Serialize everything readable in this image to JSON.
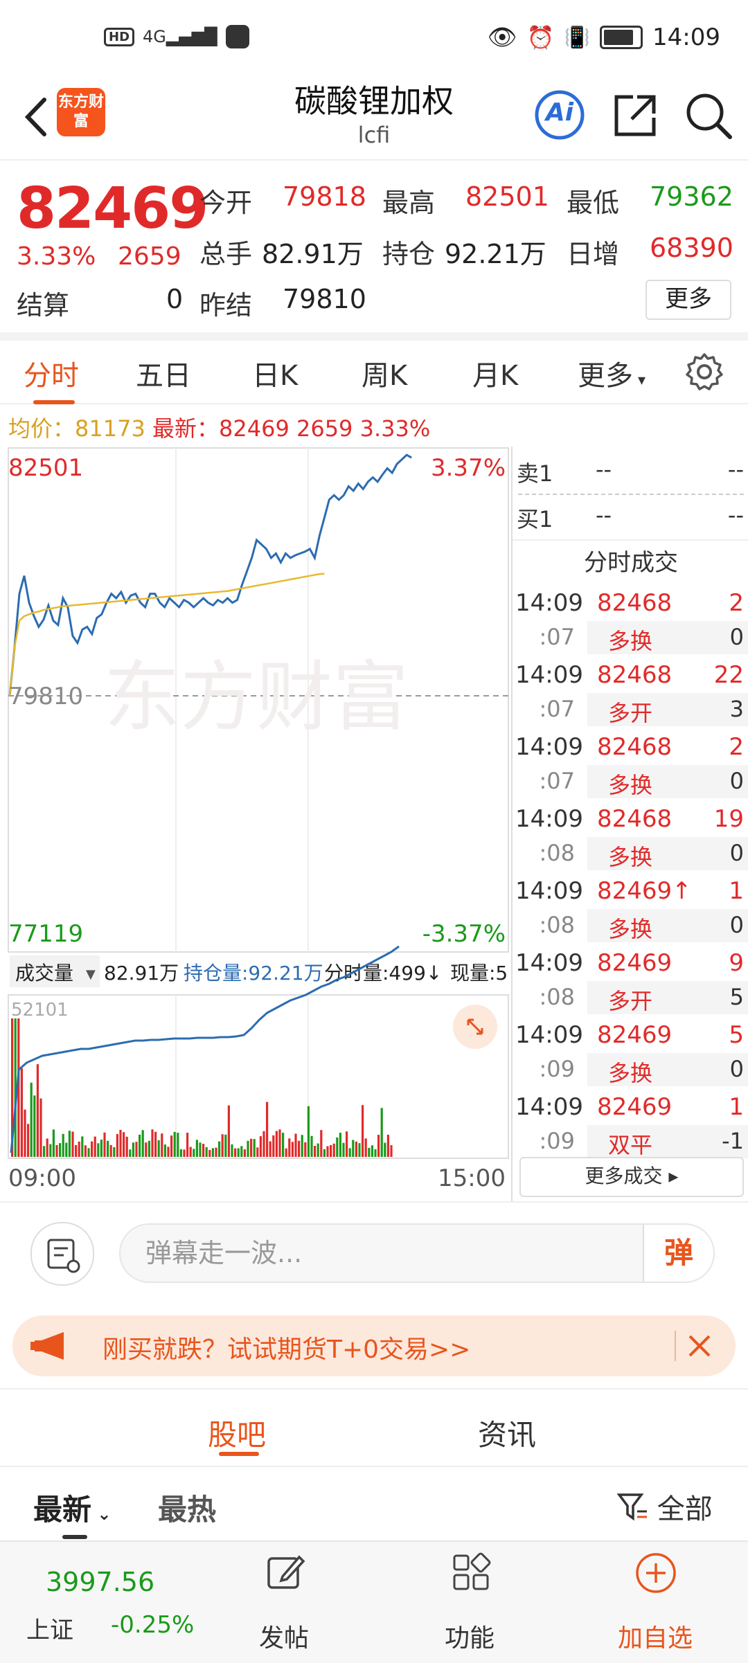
{
  "status": {
    "time": "14:09",
    "hd": "HD",
    "net": "4G"
  },
  "header": {
    "title": "碳酸锂加权",
    "subtitle": "lcfi",
    "logo": "东方财富",
    "ai": "Ai"
  },
  "quote": {
    "price": "82469",
    "pct": "3.33%",
    "change": "2659",
    "open_label": "今开",
    "open": "79818",
    "high_label": "最高",
    "high": "82501",
    "low_label": "最低",
    "low": "79362",
    "vol_label": "总手",
    "vol": "82.91万",
    "oi_label": "持仓",
    "oi": "92.21万",
    "day_inc_label": "日增",
    "day_inc": "68390",
    "settle_label": "结算",
    "settle": "0",
    "prev_settle_label": "昨结",
    "prev_settle": "79810",
    "more": "更多"
  },
  "tabs": {
    "t1": "分时",
    "t2": "五日",
    "t3": "日K",
    "t4": "周K",
    "t5": "月K",
    "t6": "更多"
  },
  "avgline": {
    "avg_label": "均价：",
    "avg": "81173",
    "latest_label": "最新：",
    "latest": "82469",
    "chg": "2659",
    "pct": "3.33%"
  },
  "chart": {
    "top_price": "82501",
    "top_pct": "3.37%",
    "mid_price": "79810",
    "bottom_price": "77119",
    "bottom_pct": "-3.37%",
    "watermark": "东方财富",
    "vol_selector": "成交量",
    "vol_value": "82.91万",
    "oi_text": "持仓量:92.21万",
    "tick_vol": "分时量:499↓",
    "cur_vol": "现量:5",
    "vol_max": "52101",
    "time_start": "09:00",
    "time_end": "15:00"
  },
  "chart_data": {
    "type": "line",
    "title": "",
    "ylim": [
      77119,
      82501
    ],
    "reference": 79810,
    "series": [
      {
        "values": [
          79810,
          80350,
          80950,
          81150,
          80850,
          80700,
          80580,
          80660,
          80820,
          80650,
          80600,
          80900,
          80800,
          80480,
          80400,
          80550,
          80580,
          80500,
          80680,
          80720,
          80850,
          80950,
          80900,
          80970,
          80850,
          80930,
          80950,
          80850,
          80800,
          80950,
          80950,
          80850,
          80800,
          80900,
          80850,
          80800,
          80880,
          80850,
          80800,
          80850,
          80900,
          80850,
          80820,
          80880,
          80850,
          80900,
          80850,
          80880,
          81050,
          81200,
          81350,
          81550,
          81500,
          81450,
          81350,
          81400,
          81300,
          81400,
          81350,
          81380,
          81400,
          81420,
          81450,
          81350,
          81600,
          81800,
          82000,
          82050,
          82000,
          82050,
          82150,
          82100,
          82180,
          82120,
          82200,
          82250,
          82200,
          82280,
          82350,
          82300,
          82400,
          82450,
          82500,
          82469
        ]
      },
      {
        "values": [
          79810,
          80350,
          80650,
          80700,
          80720,
          80740,
          80750,
          80770,
          80780,
          80790,
          80800,
          80810,
          80815,
          80820,
          80825,
          80830,
          80835,
          80840,
          80845,
          80850,
          80855,
          80860,
          80865,
          80870,
          80875,
          80880,
          80885,
          80890,
          80895,
          80900,
          80905,
          80910,
          80915,
          80920,
          80925,
          80930,
          80935,
          80940,
          80945,
          80950,
          80955,
          80960,
          80965,
          80970,
          80975,
          80980,
          80990,
          81000,
          81010,
          81020,
          81030,
          81040,
          81050,
          81060,
          81070,
          81080,
          81090,
          81100,
          81110,
          81120,
          81130,
          81140,
          81150,
          81160,
          81170,
          81173
        ]
      }
    ]
  },
  "orderbook": {
    "sell_label": "卖1",
    "sell_price": "--",
    "sell_vol": "--",
    "buy_label": "买1",
    "buy_price": "--",
    "buy_vol": "--"
  },
  "ticks_title": "分时成交",
  "ticks": [
    {
      "time": "14:09",
      "sec": ":07",
      "price": "82468",
      "vol": "2",
      "kind": "多换",
      "oi": "0"
    },
    {
      "time": "14:09",
      "sec": ":07",
      "price": "82468",
      "vol": "22",
      "kind": "多开",
      "oi": "3"
    },
    {
      "time": "14:09",
      "sec": ":07",
      "price": "82468",
      "vol": "2",
      "kind": "多换",
      "oi": "0"
    },
    {
      "time": "14:09",
      "sec": ":08",
      "price": "82468",
      "vol": "19",
      "kind": "多换",
      "oi": "0"
    },
    {
      "time": "14:09",
      "sec": ":08",
      "price": "82469↑",
      "vol": "1",
      "kind": "多换",
      "oi": "0"
    },
    {
      "time": "14:09",
      "sec": ":08",
      "price": "82469",
      "vol": "9",
      "kind": "多开",
      "oi": "5"
    },
    {
      "time": "14:09",
      "sec": ":09",
      "price": "82469",
      "vol": "5",
      "kind": "多换",
      "oi": "0"
    },
    {
      "time": "14:09",
      "sec": ":09",
      "price": "82469",
      "vol": "1",
      "kind": "双平",
      "oi": "-1"
    }
  ],
  "more_trades": "更多成交 ▸",
  "danmu": {
    "placeholder": "弹幕走一波...",
    "btn": "弹"
  },
  "promo": {
    "text": "刚买就跌？试试期货T+0交易>>"
  },
  "forum": {
    "tab1": "股吧",
    "tab2": "资讯",
    "sort1": "最新",
    "sort2": "最热",
    "filter": "全部"
  },
  "bottom": {
    "index_value": "3997.56",
    "index_name": "上证",
    "index_chg": "-0.25%",
    "post": "发帖",
    "func": "功能",
    "add": "加自选"
  }
}
